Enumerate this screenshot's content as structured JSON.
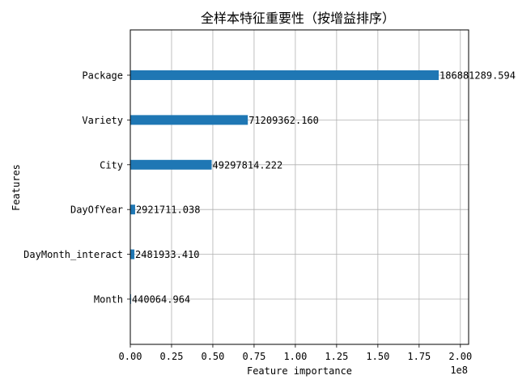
{
  "chart_data": {
    "type": "bar",
    "orientation": "horizontal",
    "title": "全样本特征重要性（按增益排序）",
    "xlabel": "Feature importance",
    "ylabel": "Features",
    "x_scale_label": "1e8",
    "xlim": [
      0,
      205000000
    ],
    "x_ticks": [
      0,
      25000000,
      50000000,
      75000000,
      100000000,
      125000000,
      150000000,
      175000000,
      200000000
    ],
    "x_tick_labels": [
      "0.00",
      "0.25",
      "0.50",
      "0.75",
      "1.00",
      "1.25",
      "1.50",
      "1.75",
      "2.00"
    ],
    "categories": [
      "Package",
      "Variety",
      "City",
      "DayOfYear",
      "DayMonth_interact",
      "Month"
    ],
    "values": [
      186881289.594,
      71209362.16,
      49297814.222,
      2921711.038,
      2481933.41,
      440064.964
    ],
    "value_labels": [
      "186881289.594",
      "71209362.160",
      "49297814.222",
      "2921711.038",
      "2481933.410",
      "440064.964"
    ],
    "bar_color": "#1f77b4",
    "grid": true,
    "legend": "none"
  }
}
